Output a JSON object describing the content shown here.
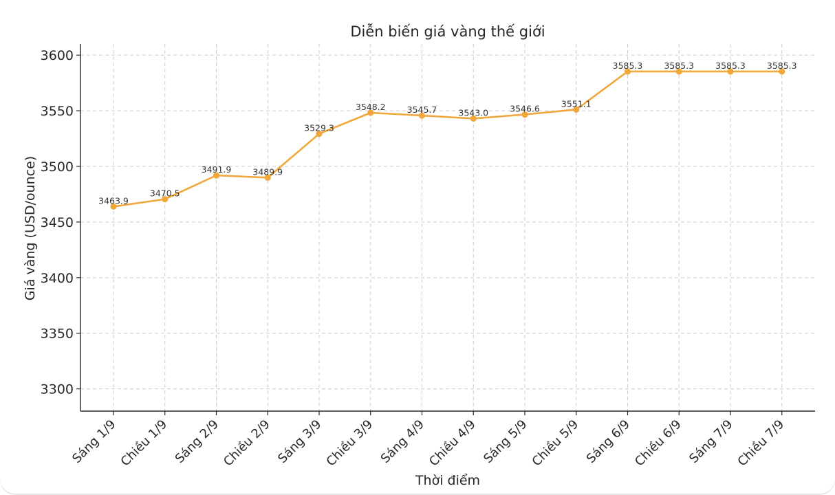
{
  "chart_data": {
    "type": "line",
    "title": "Diễn biến giá vàng thế giới",
    "xlabel": "Thời điểm",
    "ylabel": "Giá vàng (USD/ounce)",
    "categories": [
      "Sáng 1/9",
      "Chiều 1/9",
      "Sáng 2/9",
      "Chiều 2/9",
      "Sáng 3/9",
      "Chiều 3/9",
      "Sáng 4/9",
      "Chiều 4/9",
      "Sáng 5/9",
      "Chiều 5/9",
      "Sáng 6/9",
      "Chiều 6/9",
      "Sáng 7/9",
      "Chiều 7/9"
    ],
    "series": [
      {
        "values": [
          3463.9,
          3470.5,
          3491.9,
          3489.9,
          3529.3,
          3548.2,
          3545.7,
          3543.0,
          3546.6,
          3551.1,
          3585.3,
          3585.3,
          3585.3,
          3585.3
        ],
        "color": "#F0A83C"
      }
    ],
    "data_labels": [
      "3463.9",
      "3470.5",
      "3491.9",
      "3489.9",
      "3529.3",
      "3548.2",
      "3545.7",
      "3543.0",
      "3546.6",
      "3551.1",
      "3585.3",
      "3585.3",
      "3585.3",
      "3585.3"
    ],
    "yticks": [
      3300,
      3350,
      3400,
      3450,
      3500,
      3550,
      3600
    ],
    "ytick_labels": [
      "3300",
      "3350",
      "3400",
      "3450",
      "3500",
      "3550",
      "3600"
    ],
    "ylim": [
      3280,
      3610
    ],
    "grid": true,
    "line_color": "#F0A83C",
    "grid_color": "#cccccc"
  }
}
